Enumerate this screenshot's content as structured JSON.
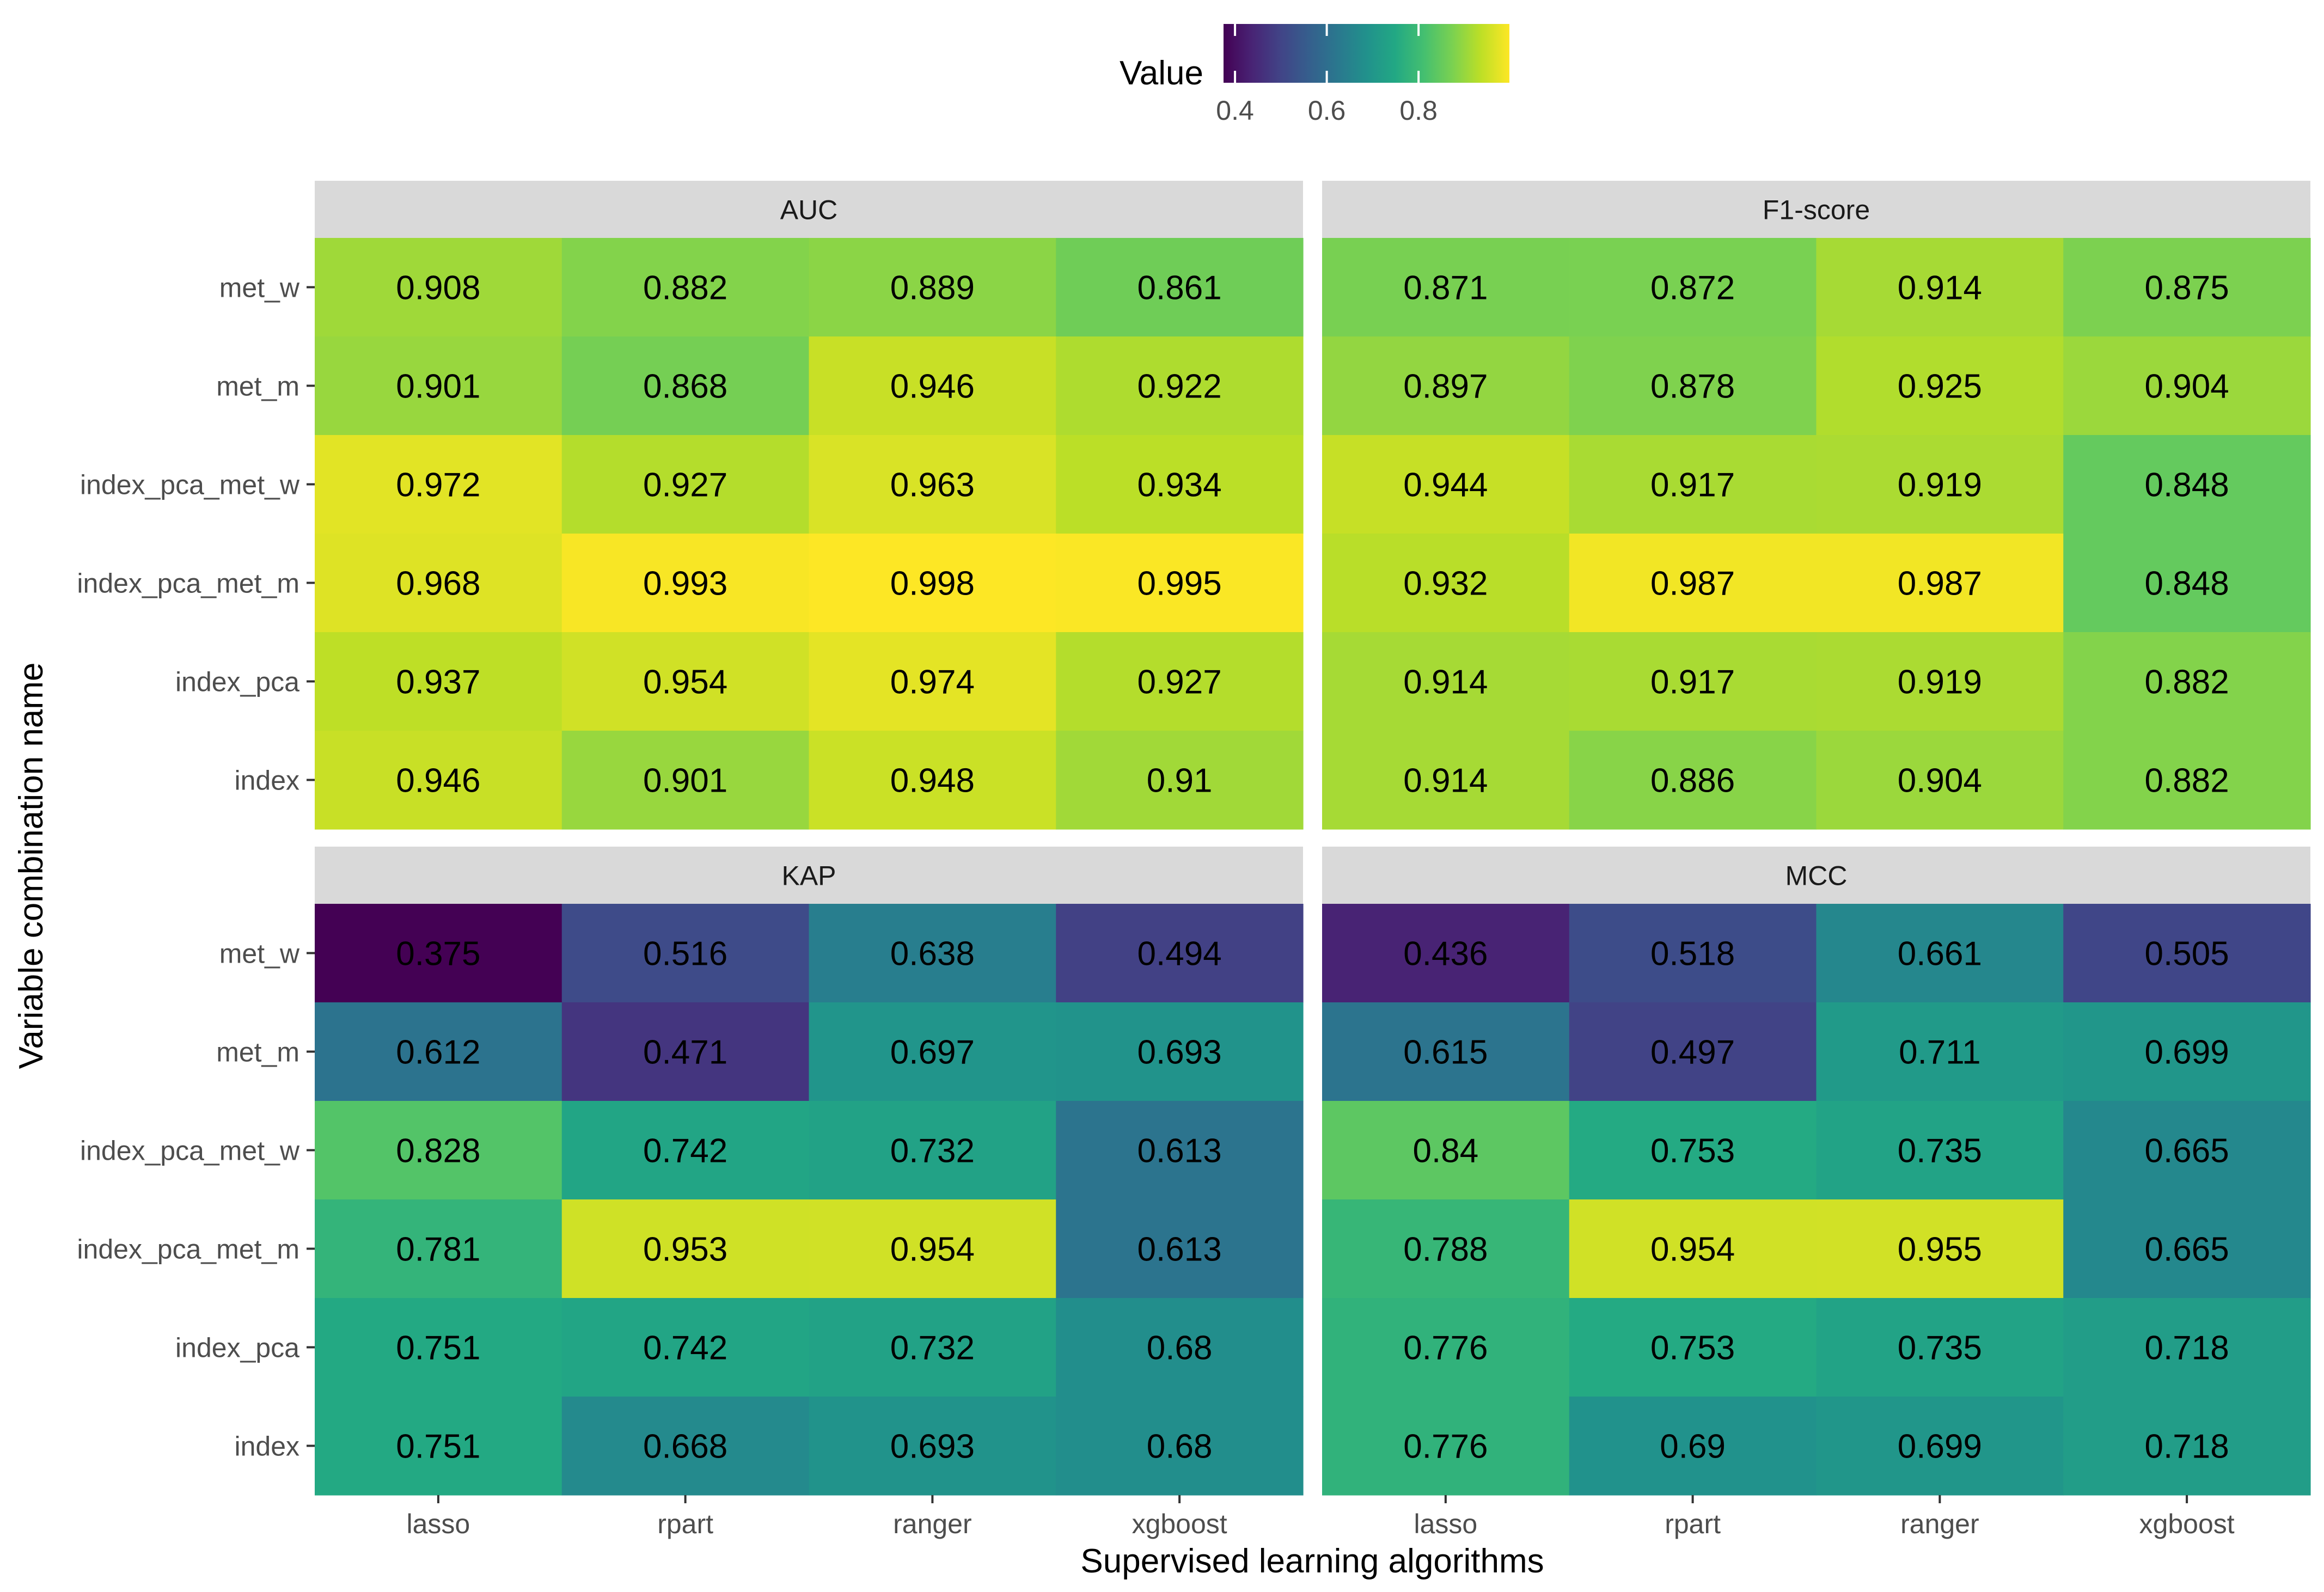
{
  "chart_data": {
    "type": "heatmap",
    "title": "",
    "xlabel": "Supervised learning algorithms",
    "ylabel": "Variable combination name",
    "x_categories": [
      "lasso",
      "rpart",
      "ranger",
      "xgboost"
    ],
    "y_categories": [
      "met_w",
      "met_m",
      "index_pca_met_w",
      "index_pca_met_m",
      "index_pca",
      "index"
    ],
    "legend": {
      "title": "Value",
      "position": "top",
      "range": [
        0.375,
        0.998
      ],
      "breaks": [
        "0.4",
        "0.6",
        "0.8"
      ],
      "colorscale": "viridis"
    },
    "facets": [
      {
        "name": "AUC",
        "values": [
          [
            "0.908",
            "0.882",
            "0.889",
            "0.861"
          ],
          [
            "0.901",
            "0.868",
            "0.946",
            "0.922"
          ],
          [
            "0.972",
            "0.927",
            "0.963",
            "0.934"
          ],
          [
            "0.968",
            "0.993",
            "0.998",
            "0.995"
          ],
          [
            "0.937",
            "0.954",
            "0.974",
            "0.927"
          ],
          [
            "0.946",
            "0.901",
            "0.948",
            "0.91"
          ]
        ]
      },
      {
        "name": "F1-score",
        "values": [
          [
            "0.871",
            "0.872",
            "0.914",
            "0.875"
          ],
          [
            "0.897",
            "0.878",
            "0.925",
            "0.904"
          ],
          [
            "0.944",
            "0.917",
            "0.919",
            "0.848"
          ],
          [
            "0.932",
            "0.987",
            "0.987",
            "0.848"
          ],
          [
            "0.914",
            "0.917",
            "0.919",
            "0.882"
          ],
          [
            "0.914",
            "0.886",
            "0.904",
            "0.882"
          ]
        ]
      },
      {
        "name": "KAP",
        "values": [
          [
            "0.375",
            "0.516",
            "0.638",
            "0.494"
          ],
          [
            "0.612",
            "0.471",
            "0.697",
            "0.693"
          ],
          [
            "0.828",
            "0.742",
            "0.732",
            "0.613"
          ],
          [
            "0.781",
            "0.953",
            "0.954",
            "0.613"
          ],
          [
            "0.751",
            "0.742",
            "0.732",
            "0.68"
          ],
          [
            "0.751",
            "0.668",
            "0.693",
            "0.68"
          ]
        ]
      },
      {
        "name": "MCC",
        "values": [
          [
            "0.436",
            "0.518",
            "0.661",
            "0.505"
          ],
          [
            "0.615",
            "0.497",
            "0.711",
            "0.699"
          ],
          [
            "0.84",
            "0.753",
            "0.735",
            "0.665"
          ],
          [
            "0.788",
            "0.954",
            "0.955",
            "0.665"
          ],
          [
            "0.776",
            "0.753",
            "0.735",
            "0.718"
          ],
          [
            "0.776",
            "0.69",
            "0.699",
            "0.718"
          ]
        ]
      }
    ]
  }
}
